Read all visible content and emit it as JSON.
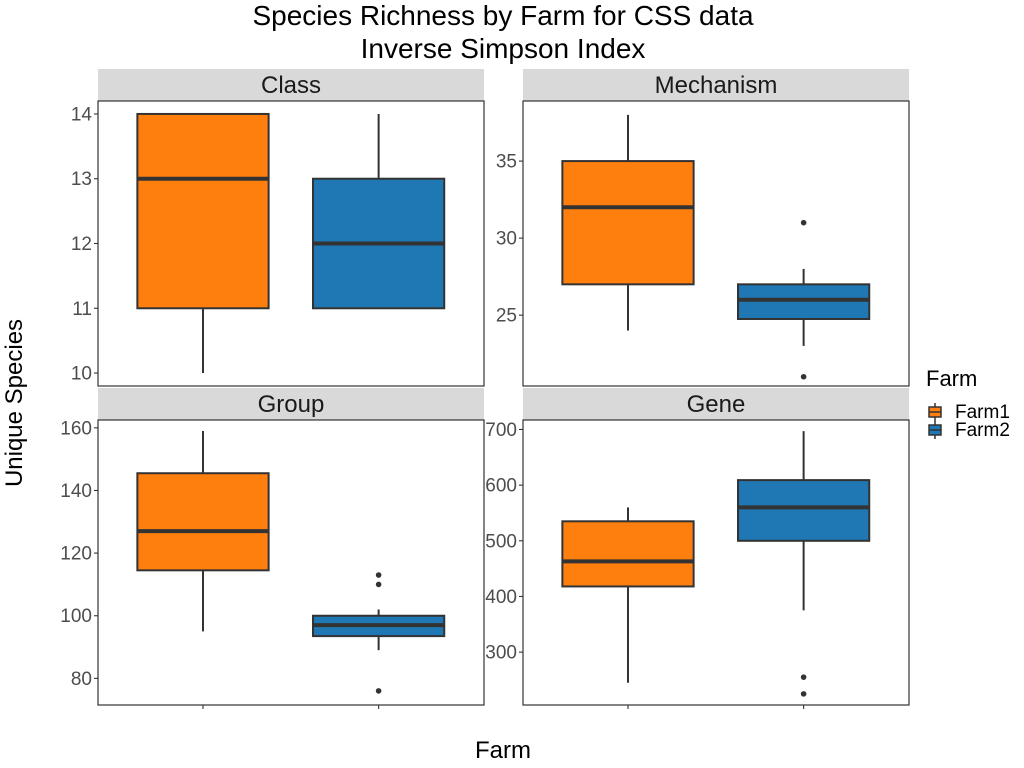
{
  "chart_data": {
    "type": "boxplot",
    "title": "Species Richness by Farm for CSS data",
    "subtitle": "Inverse Simpson Index",
    "xlabel": "Farm",
    "ylabel": "Unique Species",
    "legend": {
      "title": "Farm",
      "position": "right",
      "items": [
        {
          "name": "Farm1",
          "color": "#FF7F0E"
        },
        {
          "name": "Farm2",
          "color": "#1F77B4"
        }
      ]
    },
    "categories": [
      "Farm1",
      "Farm2"
    ],
    "panels": [
      {
        "name": "Class",
        "ylim": [
          9.8,
          14.2
        ],
        "yticks": [
          10,
          11,
          12,
          13,
          14
        ],
        "boxes": [
          {
            "group": "Farm1",
            "min": 10,
            "q1": 11,
            "median": 13,
            "q3": 14,
            "max": 14,
            "outliers": []
          },
          {
            "group": "Farm2",
            "min": 11,
            "q1": 11,
            "median": 12,
            "q3": 13,
            "max": 14,
            "outliers": []
          }
        ]
      },
      {
        "name": "Mechanism",
        "ylim": [
          20.4,
          38.9
        ],
        "yticks": [
          25,
          30,
          35
        ],
        "boxes": [
          {
            "group": "Farm1",
            "min": 24,
            "q1": 27,
            "median": 32,
            "q3": 35,
            "max": 38,
            "outliers": []
          },
          {
            "group": "Farm2",
            "min": 23,
            "q1": 24.75,
            "median": 26,
            "q3": 27,
            "max": 28,
            "outliers": [
              31,
              21
            ]
          }
        ]
      },
      {
        "name": "Group",
        "ylim": [
          71.5,
          162.5
        ],
        "yticks": [
          80,
          100,
          120,
          140,
          160
        ],
        "boxes": [
          {
            "group": "Farm1",
            "min": 95,
            "q1": 114.5,
            "median": 127,
            "q3": 145.5,
            "max": 159,
            "outliers": []
          },
          {
            "group": "Farm2",
            "min": 89,
            "q1": 93.5,
            "median": 97,
            "q3": 100,
            "max": 102,
            "outliers": [
              113,
              110,
              76
            ]
          }
        ]
      },
      {
        "name": "Gene",
        "ylim": [
          205,
          717
        ],
        "yticks": [
          300,
          400,
          500,
          600,
          700
        ],
        "boxes": [
          {
            "group": "Farm1",
            "min": 245,
            "q1": 418,
            "median": 463,
            "q3": 535,
            "max": 560,
            "outliers": []
          },
          {
            "group": "Farm2",
            "min": 375,
            "q1": 500,
            "median": 560,
            "q3": 609,
            "max": 697,
            "outliers": [
              255,
              225
            ]
          }
        ]
      }
    ],
    "grid": false
  }
}
